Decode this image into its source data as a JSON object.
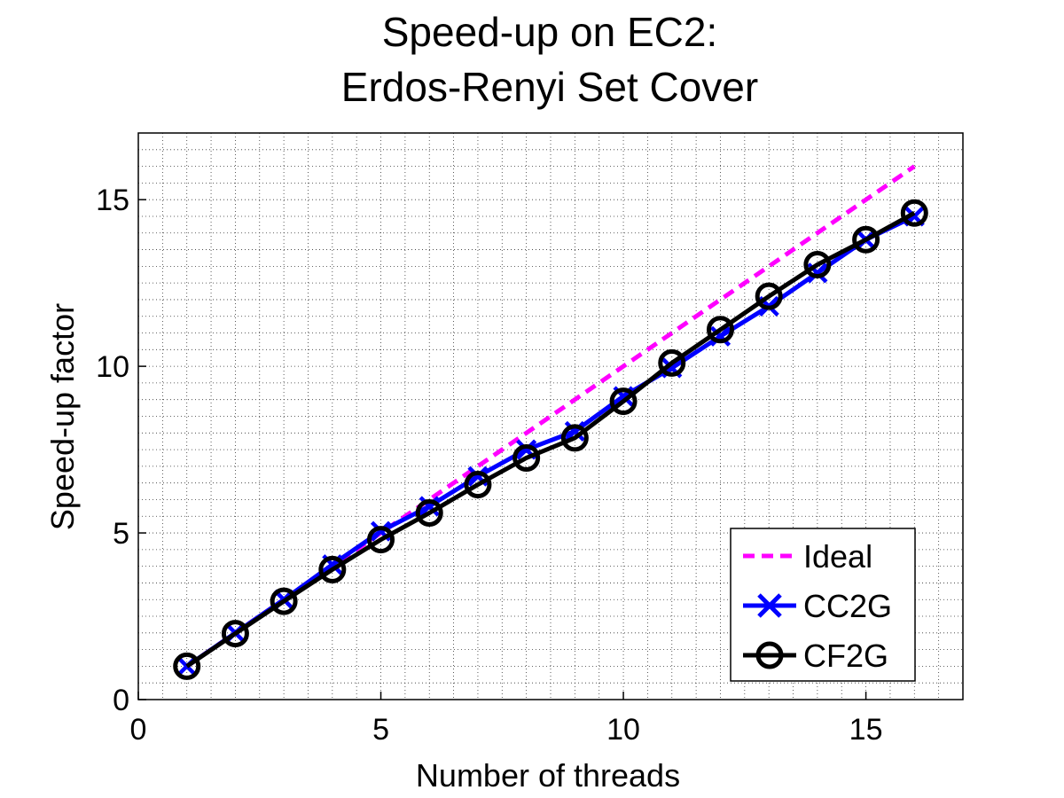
{
  "chart_data": {
    "type": "line",
    "title_lines": [
      "Speed-up on EC2:",
      "Erdos-Renyi Set Cover"
    ],
    "xlabel": "Number of threads",
    "ylabel": "Speed-up factor",
    "xlim": [
      0,
      17
    ],
    "ylim": [
      0,
      17
    ],
    "xticks": [
      0,
      5,
      10,
      15
    ],
    "yticks": [
      0,
      5,
      10,
      15
    ],
    "grid": "major and minor, dotted",
    "legend_position": "bottom-right",
    "series": [
      {
        "name": "Ideal",
        "color": "#ff00ff",
        "style": "dashed",
        "marker": "none",
        "x": [
          1,
          16
        ],
        "y": [
          1,
          16
        ]
      },
      {
        "name": "CC2G",
        "color": "#0000ff",
        "style": "solid",
        "marker": "x",
        "x": [
          1,
          2,
          3,
          4,
          5,
          6,
          7,
          8,
          9,
          10,
          11,
          12,
          13,
          14,
          15,
          16
        ],
        "y": [
          1.0,
          2.0,
          3.0,
          4.05,
          5.05,
          5.8,
          6.7,
          7.5,
          8.05,
          9.1,
          9.95,
          10.9,
          11.8,
          12.8,
          13.8,
          14.5
        ]
      },
      {
        "name": "CF2G",
        "color": "#000000",
        "style": "solid",
        "marker": "o",
        "x": [
          1,
          2,
          3,
          4,
          5,
          6,
          7,
          8,
          9,
          10,
          11,
          12,
          13,
          14,
          15,
          16
        ],
        "y": [
          1.0,
          1.98,
          2.95,
          3.9,
          4.8,
          5.6,
          6.45,
          7.25,
          7.85,
          8.95,
          10.1,
          11.1,
          12.1,
          13.05,
          13.8,
          14.6
        ]
      }
    ]
  }
}
